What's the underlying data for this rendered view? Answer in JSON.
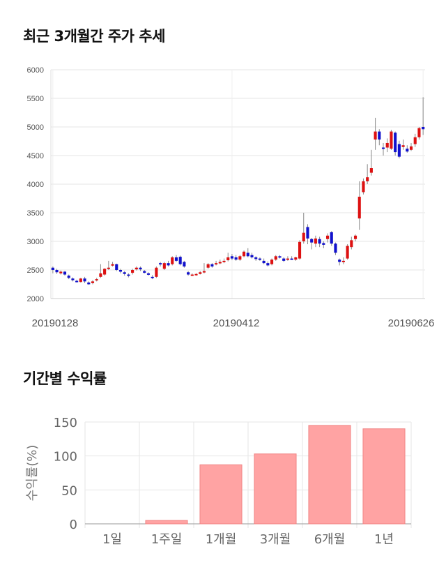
{
  "sections": {
    "price_title": "최근 3개월간 주가 추세",
    "return_title": "기간별 수익률"
  },
  "chart_data": [
    {
      "type": "candlestick",
      "title": "최근 3개월간 주가 추세",
      "ylim": [
        2000,
        6000
      ],
      "yticks": [
        2000,
        2500,
        3000,
        3500,
        4000,
        4500,
        5000,
        5500,
        6000
      ],
      "xtick_labels": [
        "20190128",
        "20190412",
        "20190626"
      ],
      "grid": true,
      "colors": {
        "up": "#dd1111",
        "down": "#1111cc",
        "wick": "#888888"
      },
      "candles": [
        [
          2540,
          2500,
          2560,
          2440
        ],
        [
          2500,
          2460,
          2520,
          2430
        ],
        [
          2440,
          2470,
          2490,
          2420
        ],
        [
          2470,
          2420,
          2480,
          2400
        ],
        [
          2400,
          2360,
          2420,
          2340
        ],
        [
          2350,
          2320,
          2370,
          2300
        ],
        [
          2310,
          2300,
          2330,
          2280
        ],
        [
          2290,
          2350,
          2360,
          2280
        ],
        [
          2350,
          2300,
          2380,
          2270
        ],
        [
          2280,
          2250,
          2300,
          2240
        ],
        [
          2270,
          2300,
          2320,
          2250
        ],
        [
          2320,
          2340,
          2360,
          2300
        ],
        [
          2380,
          2440,
          2600,
          2360
        ],
        [
          2420,
          2520,
          2530,
          2400
        ],
        [
          2520,
          2540,
          2660,
          2500
        ],
        [
          2580,
          2600,
          2640,
          2560
        ],
        [
          2600,
          2500,
          2610,
          2480
        ],
        [
          2500,
          2470,
          2520,
          2440
        ],
        [
          2460,
          2430,
          2480,
          2400
        ],
        [
          2420,
          2410,
          2440,
          2370
        ],
        [
          2450,
          2500,
          2520,
          2420
        ],
        [
          2510,
          2540,
          2560,
          2490
        ],
        [
          2540,
          2510,
          2560,
          2480
        ],
        [
          2480,
          2450,
          2500,
          2440
        ],
        [
          2440,
          2420,
          2460,
          2400
        ],
        [
          2380,
          2360,
          2410,
          2340
        ],
        [
          2380,
          2540,
          2560,
          2360
        ],
        [
          2620,
          2600,
          2640,
          2560
        ],
        [
          2520,
          2620,
          2640,
          2500
        ],
        [
          2620,
          2580,
          2660,
          2560
        ],
        [
          2600,
          2720,
          2740,
          2580
        ],
        [
          2720,
          2660,
          2760,
          2640
        ],
        [
          2730,
          2600,
          2750,
          2580
        ],
        [
          2640,
          2560,
          2660,
          2540
        ],
        [
          2460,
          2420,
          2480,
          2400
        ],
        [
          2420,
          2420,
          2440,
          2400
        ],
        [
          2410,
          2430,
          2440,
          2400
        ],
        [
          2430,
          2460,
          2480,
          2420
        ],
        [
          2460,
          2480,
          2620,
          2440
        ],
        [
          2540,
          2600,
          2620,
          2520
        ],
        [
          2600,
          2560,
          2620,
          2540
        ],
        [
          2600,
          2620,
          2660,
          2580
        ],
        [
          2620,
          2640,
          2680,
          2600
        ],
        [
          2640,
          2660,
          2700,
          2620
        ],
        [
          2670,
          2720,
          2800,
          2650
        ],
        [
          2740,
          2700,
          2780,
          2670
        ],
        [
          2720,
          2680,
          2760,
          2660
        ],
        [
          2680,
          2740,
          2760,
          2660
        ],
        [
          2740,
          2820,
          2840,
          2720
        ],
        [
          2800,
          2740,
          2880,
          2720
        ],
        [
          2760,
          2720,
          2800,
          2700
        ],
        [
          2720,
          2690,
          2740,
          2660
        ],
        [
          2700,
          2680,
          2720,
          2660
        ],
        [
          2660,
          2620,
          2700,
          2600
        ],
        [
          2620,
          2580,
          2650,
          2560
        ],
        [
          2600,
          2680,
          2700,
          2580
        ],
        [
          2680,
          2740,
          2760,
          2660
        ],
        [
          2740,
          2720,
          2760,
          2700
        ],
        [
          2700,
          2660,
          2720,
          2640
        ],
        [
          2680,
          2700,
          2740,
          2660
        ],
        [
          2700,
          2690,
          2740,
          2680
        ],
        [
          2680,
          2720,
          2730,
          2660
        ],
        [
          2700,
          2990,
          3020,
          2680
        ],
        [
          3000,
          3150,
          3500,
          2960
        ],
        [
          3250,
          3050,
          3300,
          2950
        ],
        [
          3040,
          2980,
          3060,
          2860
        ],
        [
          2960,
          3050,
          3100,
          2900
        ],
        [
          3040,
          2960,
          3080,
          2900
        ],
        [
          2970,
          2940,
          3000,
          2880
        ],
        [
          3040,
          3100,
          3140,
          2980
        ],
        [
          3160,
          2960,
          3180,
          2920
        ],
        [
          2960,
          2800,
          2980,
          2760
        ],
        [
          2680,
          2640,
          2700,
          2580
        ],
        [
          2640,
          2660,
          2720,
          2600
        ],
        [
          2700,
          2920,
          2950,
          2680
        ],
        [
          2900,
          3020,
          3080,
          2860
        ],
        [
          3040,
          3100,
          3120,
          3000
        ],
        [
          3400,
          3780,
          4050,
          3200
        ],
        [
          3860,
          4050,
          4100,
          3820
        ],
        [
          4050,
          4120,
          4350,
          4000
        ],
        [
          4200,
          4280,
          4600,
          4150
        ],
        [
          4780,
          4920,
          5160,
          4600
        ],
        [
          4920,
          4780,
          4960,
          4680
        ],
        [
          4640,
          4620,
          4720,
          4500
        ],
        [
          4640,
          4720,
          4800,
          4560
        ],
        [
          4620,
          4920,
          4950,
          4600
        ],
        [
          4900,
          4560,
          4920,
          4500
        ],
        [
          4700,
          4480,
          4760,
          4450
        ],
        [
          4650,
          4680,
          4780,
          4600
        ],
        [
          4620,
          4570,
          4680,
          4550
        ],
        [
          4600,
          4660,
          4720,
          4580
        ],
        [
          4700,
          4820,
          4880,
          4650
        ],
        [
          4820,
          4980,
          5000,
          4780
        ],
        [
          5000,
          4960,
          5520,
          4860
        ]
      ]
    },
    {
      "type": "bar",
      "title": "기간별 수익률",
      "ylabel": "수익률(%)",
      "categories": [
        "1일",
        "1주일",
        "1개월",
        "3개월",
        "6개월",
        "1년"
      ],
      "values": [
        0,
        5,
        87,
        103,
        145,
        140
      ],
      "ylim": [
        0,
        150
      ],
      "yticks": [
        0,
        50,
        100,
        150
      ],
      "grid": true,
      "colors": {
        "bar": "#ffa3a3",
        "bar_border": "#f08585"
      }
    }
  ]
}
